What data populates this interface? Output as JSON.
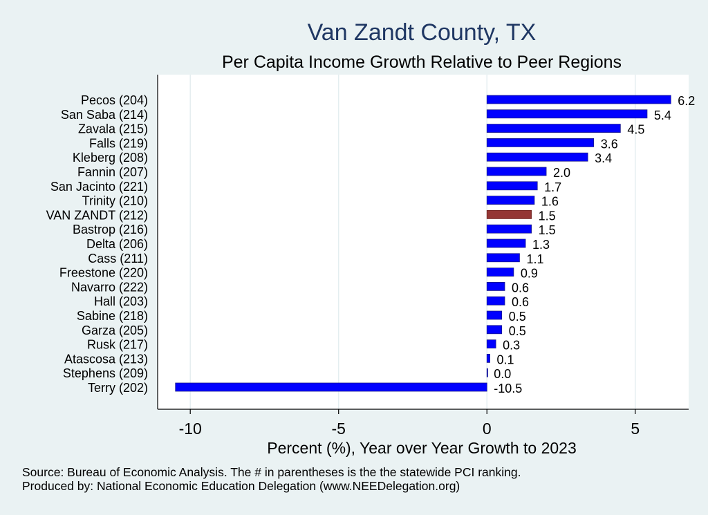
{
  "chart_data": {
    "type": "bar",
    "orientation": "horizontal",
    "title": "Van Zandt County, TX",
    "subtitle": "Per Capita Income Growth Relative to Peer Regions",
    "xlabel": "Percent (%), Year over Year Growth to 2023",
    "ylabel": "",
    "xlim": [
      -11.1,
      6.8
    ],
    "xticks": [
      -10,
      -5,
      0,
      5
    ],
    "xtick_labels": [
      "-10",
      "-5",
      "0",
      "5"
    ],
    "grid": true,
    "legend": "none",
    "highlight": "VAN ZANDT (212)",
    "categories": [
      "Pecos (204)",
      "San Saba (214)",
      "Zavala (215)",
      "Falls (219)",
      "Kleberg (208)",
      "Fannin (207)",
      "San Jacinto (221)",
      "Trinity (210)",
      "VAN ZANDT (212)",
      "Bastrop (216)",
      "Delta (206)",
      "Cass (211)",
      "Freestone (220)",
      "Navarro (222)",
      "Hall (203)",
      "Sabine (218)",
      "Garza (205)",
      "Rusk (217)",
      "Atascosa (213)",
      "Stephens (209)",
      "Terry (202)"
    ],
    "values": [
      6.2,
      5.4,
      4.5,
      3.6,
      3.4,
      2.0,
      1.7,
      1.6,
      1.5,
      1.5,
      1.3,
      1.1,
      0.9,
      0.6,
      0.6,
      0.5,
      0.5,
      0.3,
      0.1,
      0.0,
      -10.5
    ],
    "value_labels": [
      "6.2",
      "5.4",
      "4.5",
      "3.6",
      "3.4",
      "2.0",
      "1.7",
      "1.6",
      "1.5",
      "1.5",
      "1.3",
      "1.1",
      "0.9",
      "0.6",
      "0.6",
      "0.5",
      "0.5",
      "0.3",
      "0.1",
      "0.0",
      "-10.5"
    ]
  },
  "colors": {
    "background": "#eaf2f3",
    "plot_area": "#ffffff",
    "bar": "#0000ff",
    "highlight_bar": "#943634",
    "title": "#1f3763",
    "grid": "#e4eef0"
  },
  "footer": {
    "source": "Source: Bureau of Economic Analysis. The # in parentheses is the the statewide PCI ranking.",
    "produced_by": "Produced by: National Economic Education Delegation (www.NEEDelegation.org)"
  }
}
